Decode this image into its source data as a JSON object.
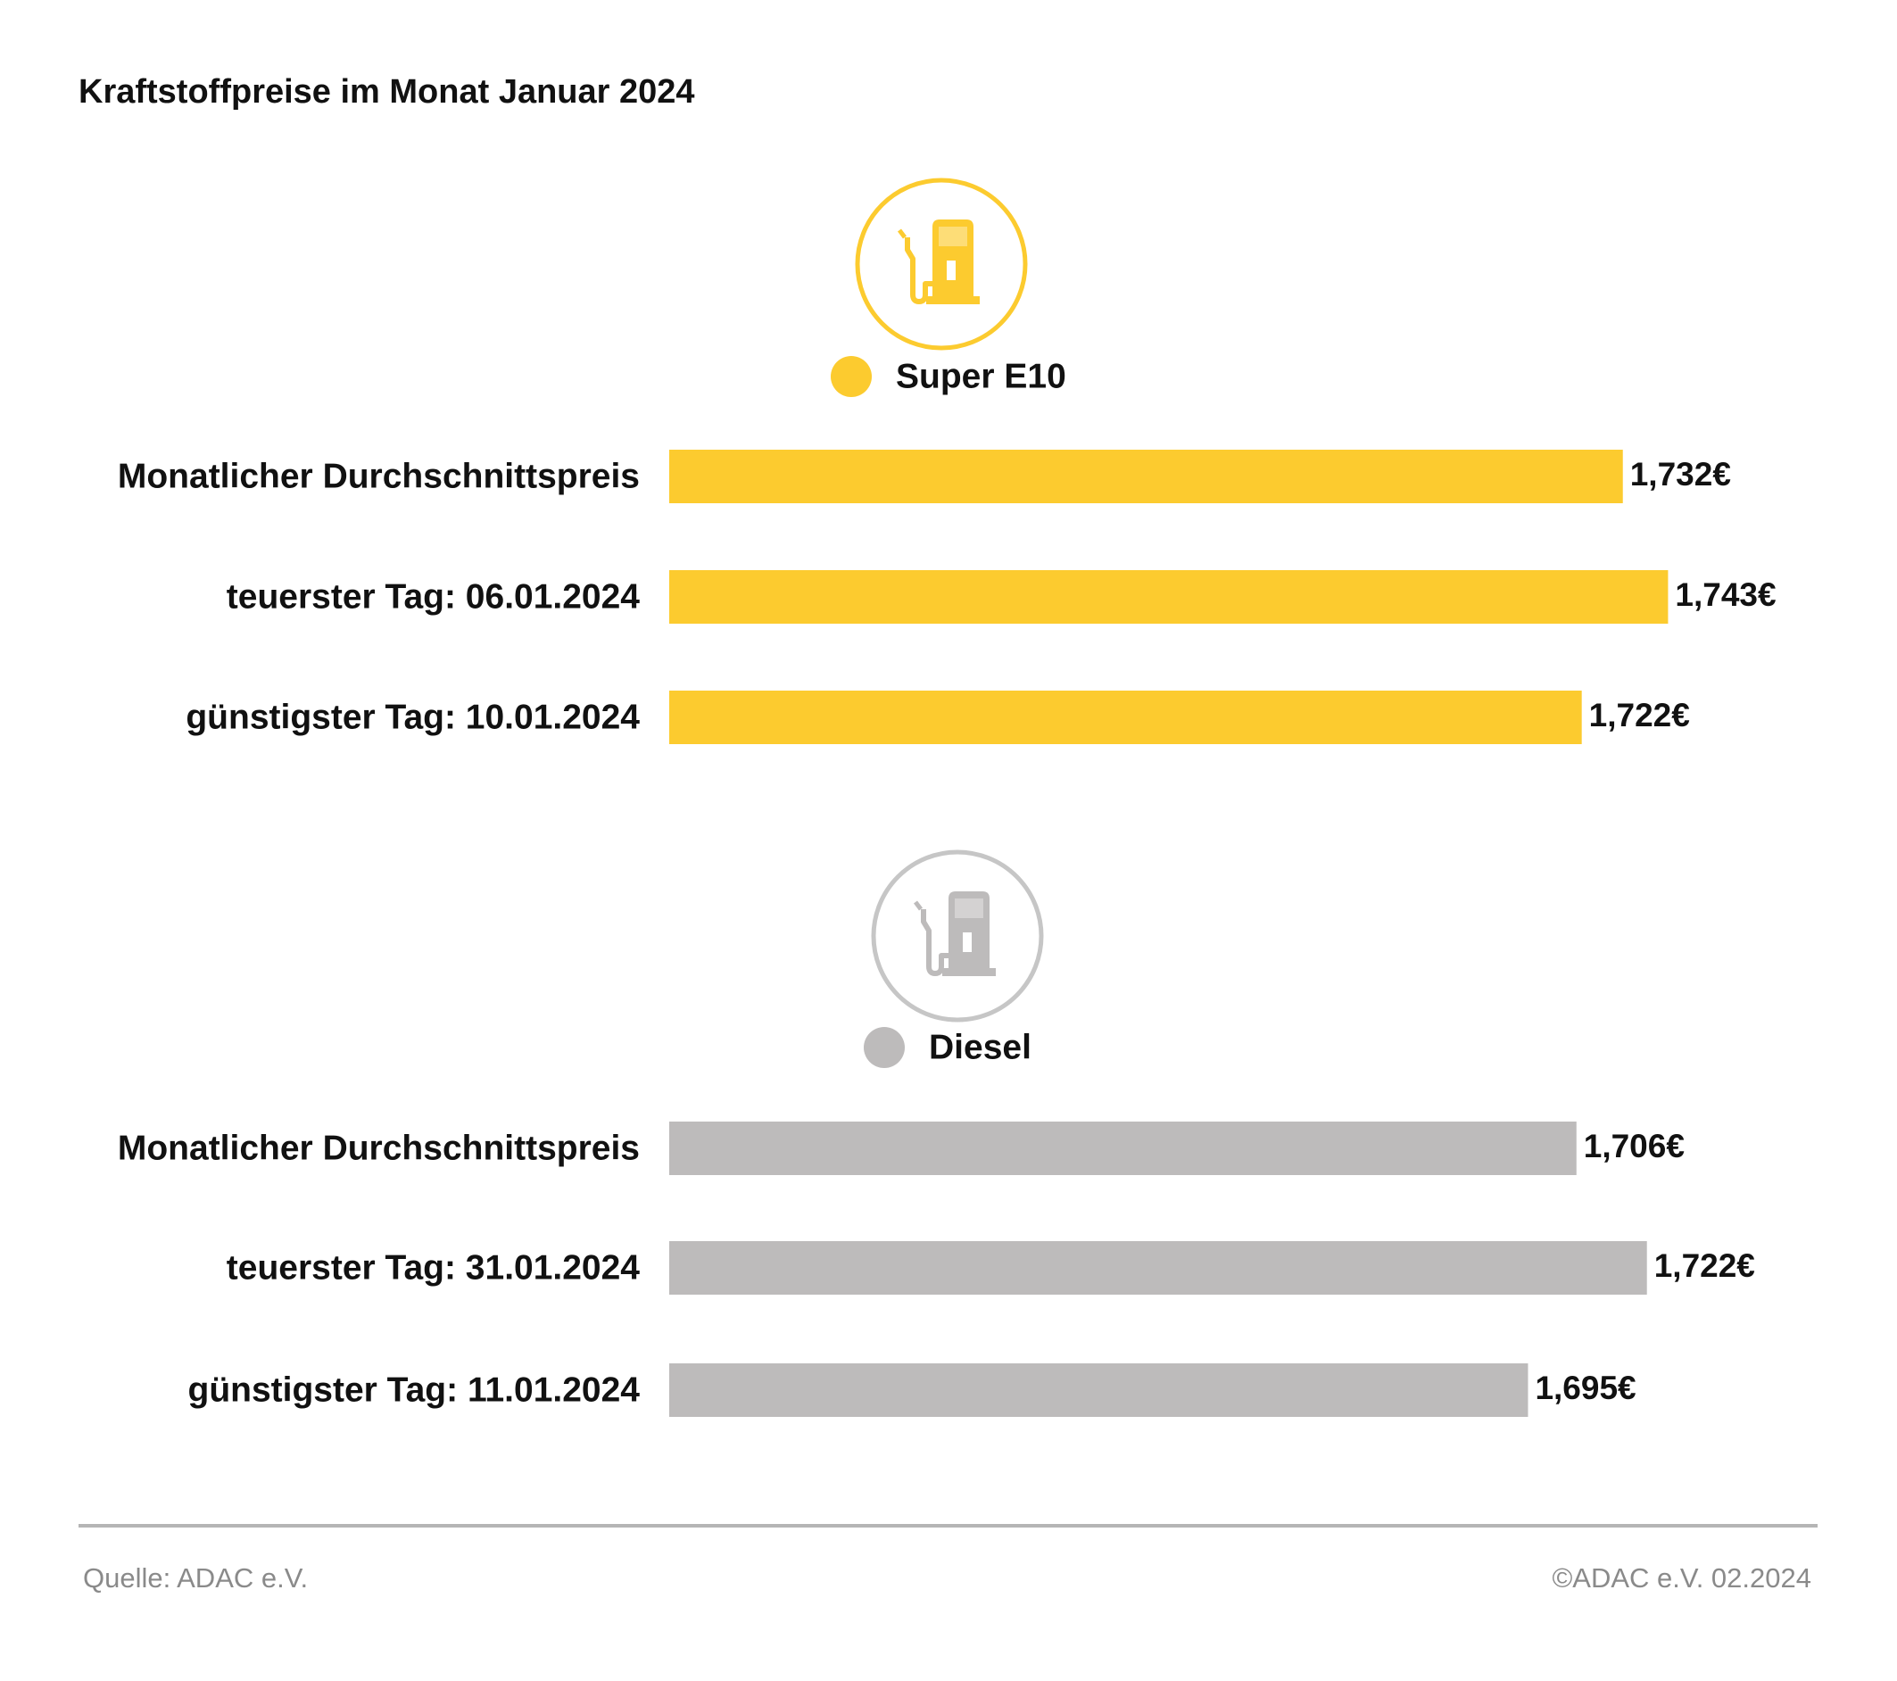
{
  "title": "Kraftstoffpreise im Monat Januar 2024",
  "source": "Quelle: ADAC e.V.",
  "copyright": "©ADAC e.V. 02.2024",
  "chart_data": [
    {
      "type": "bar",
      "orientation": "horizontal",
      "categories": [
        "Monatlicher Durchschnittspreis",
        "teuerster Tag: 06.01.2024",
        "günstigster Tag: 10.01.2024"
      ],
      "series": [
        {
          "name": "Super E10",
          "color": "#fccb2f",
          "values": [
            1.732,
            1.743,
            1.722
          ],
          "value_labels": [
            "1,732€",
            "1,743€",
            "1,722€"
          ]
        }
      ],
      "xlim": [
        1.5,
        1.8
      ]
    },
    {
      "type": "bar",
      "orientation": "horizontal",
      "categories": [
        "Monatlicher Durchschnittspreis",
        "teuerster Tag: 31.01.2024",
        "günstigster Tag: 11.01.2024"
      ],
      "series": [
        {
          "name": "Diesel",
          "color": "#bdbbbb",
          "values": [
            1.706,
            1.722,
            1.695
          ],
          "value_labels": [
            "1,706€",
            "1,722€",
            "1,695€"
          ]
        }
      ],
      "xlim": [
        1.5,
        1.78
      ]
    }
  ]
}
